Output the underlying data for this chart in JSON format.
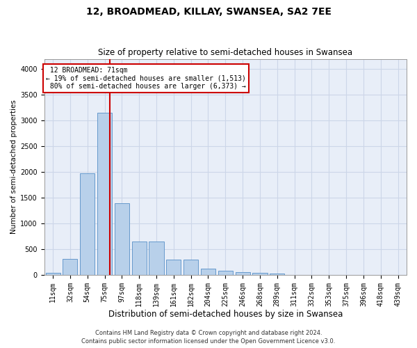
{
  "title": "12, BROADMEAD, KILLAY, SWANSEA, SA2 7EE",
  "subtitle": "Size of property relative to semi-detached houses in Swansea",
  "xlabel": "Distribution of semi-detached houses by size in Swansea",
  "ylabel": "Number of semi-detached properties",
  "footer_line1": "Contains HM Land Registry data © Crown copyright and database right 2024.",
  "footer_line2": "Contains public sector information licensed under the Open Government Licence v3.0.",
  "categories": [
    "11sqm",
    "32sqm",
    "54sqm",
    "75sqm",
    "97sqm",
    "118sqm",
    "139sqm",
    "161sqm",
    "182sqm",
    "204sqm",
    "225sqm",
    "246sqm",
    "268sqm",
    "289sqm",
    "311sqm",
    "332sqm",
    "353sqm",
    "375sqm",
    "396sqm",
    "418sqm",
    "439sqm"
  ],
  "values": [
    50,
    310,
    1980,
    3150,
    1390,
    650,
    650,
    300,
    300,
    120,
    80,
    60,
    50,
    30,
    10,
    5,
    5,
    5,
    5,
    5,
    5
  ],
  "bar_color": "#b8d0ea",
  "bar_edge_color": "#6699cc",
  "grid_color": "#ccd6e8",
  "background_color": "#e8eef8",
  "property_label": "12 BROADMEAD: 71sqm",
  "pct_smaller": 19,
  "pct_larger": 80,
  "count_smaller": "1,513",
  "count_larger": "6,373",
  "red_line_color": "#cc0000",
  "annotation_box_color": "#cc0000",
  "vline_position": 3.3,
  "ylim": [
    0,
    4200
  ],
  "yticks": [
    0,
    500,
    1000,
    1500,
    2000,
    2500,
    3000,
    3500,
    4000
  ],
  "title_fontsize": 10,
  "subtitle_fontsize": 8.5,
  "xlabel_fontsize": 8.5,
  "ylabel_fontsize": 7.5,
  "tick_fontsize": 7,
  "footer_fontsize": 6
}
